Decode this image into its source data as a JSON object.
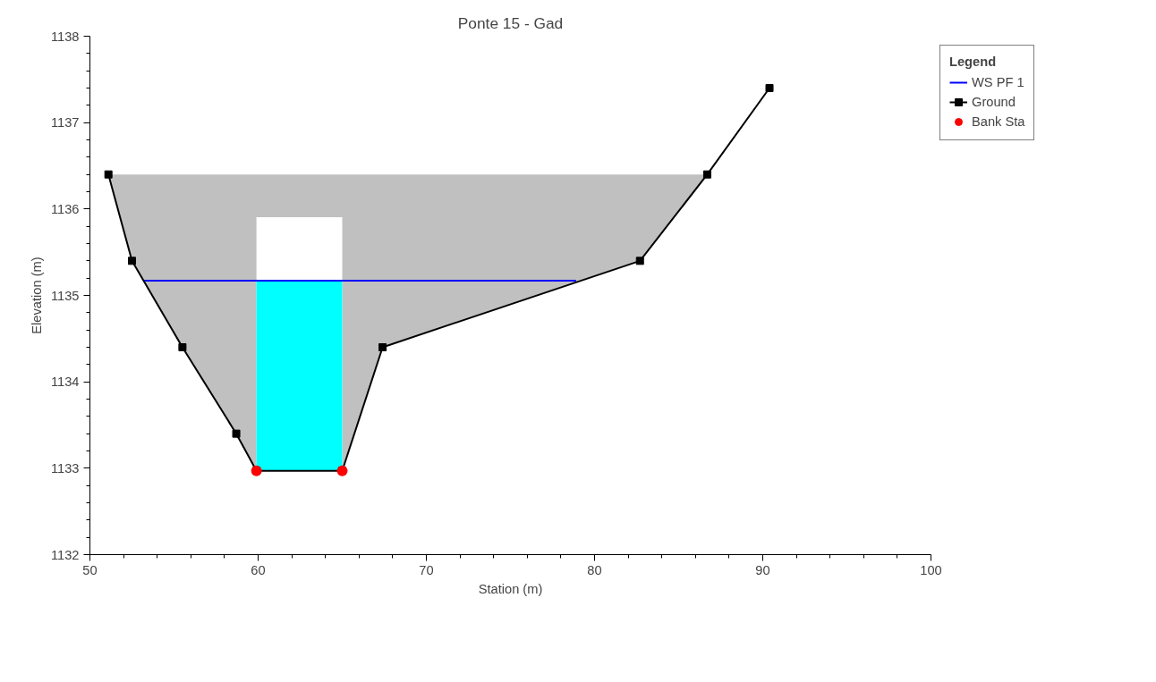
{
  "chart_data": {
    "type": "line",
    "title": "Ponte 15 - Gad",
    "xlabel": "Station (m)",
    "ylabel": "Elevation (m)",
    "legend_title": "Legend",
    "xlim": [
      50,
      100
    ],
    "xticks": [
      50,
      60,
      70,
      80,
      90,
      100
    ],
    "ylim": [
      1132,
      1138
    ],
    "yticks": [
      1132,
      1133,
      1134,
      1135,
      1136,
      1137,
      1138
    ],
    "grid": false,
    "legend": "top right",
    "series": [
      {
        "color": "#c0c0c0",
        "x": [
          51.1,
          52.5,
          55.5,
          58.7,
          59.9,
          65.0,
          67.4,
          82.7,
          86.7
        ],
        "values": [
          null,
          null,
          null,
          null,
          null,
          null,
          null,
          null,
          null
        ],
        "upper": [
          1136.4,
          1136.4,
          1136.4,
          1136.4,
          1136.4,
          1136.4,
          1136.4,
          1136.4,
          1136.4
        ],
        "lower": [
          1136.4,
          1135.4,
          1134.4,
          1133.4,
          1132.97,
          1132.97,
          1134.4,
          1135.4,
          1136.4
        ]
      },
      {
        "color": "#ffffff",
        "x": [
          59.9,
          65.0
        ],
        "values": [
          1135.9,
          1135.9
        ],
        "upper": [
          1135.9,
          1135.9
        ],
        "lower": [
          1132.97,
          1132.97
        ]
      },
      {
        "color": "#00ffff",
        "x": [
          59.9,
          65.0
        ],
        "values": [
          null,
          null
        ],
        "upper": [
          1135.17,
          1135.17
        ],
        "lower": [
          1132.97,
          1132.97
        ]
      },
      {
        "name": "WS PF 1",
        "color": "#0000ff",
        "marker": "none",
        "x": [
          53.2,
          78.9
        ],
        "values": [
          1135.17,
          1135.17
        ]
      },
      {
        "name": "Ground",
        "color": "#000000",
        "marker": "square",
        "x": [
          51.1,
          52.5,
          55.5,
          58.7,
          59.9,
          65.0,
          67.4,
          82.7,
          86.7,
          90.4
        ],
        "values": [
          1136.4,
          1135.4,
          1134.4,
          1133.4,
          1132.97,
          1132.97,
          1134.4,
          1135.4,
          1136.4,
          1137.4
        ]
      },
      {
        "type": "scatter",
        "name": "Bank Sta",
        "color": "#ff0000",
        "marker": "circle",
        "x": [
          59.9,
          65.0
        ],
        "values": [
          1132.97,
          1132.97
        ]
      }
    ]
  }
}
